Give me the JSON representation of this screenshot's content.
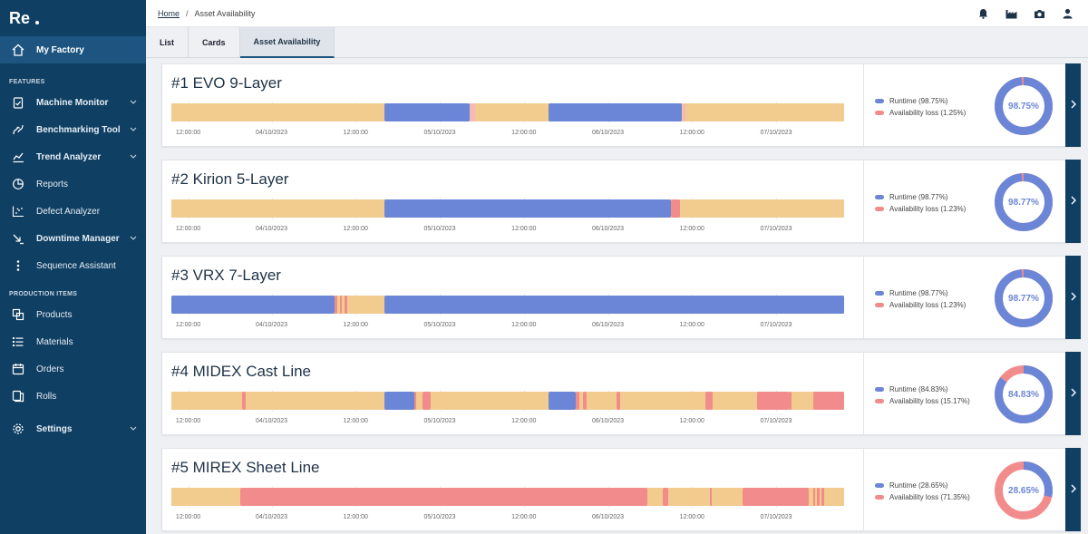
{
  "sidebar": {
    "my_factory": "My Factory",
    "features_title": "FEATURES",
    "features": [
      {
        "label": "Machine Monitor",
        "icon": "clipboard-check-icon",
        "bold": true,
        "chevron": true
      },
      {
        "label": "Benchmarking Tool",
        "icon": "benchmark-icon",
        "bold": true,
        "chevron": true
      },
      {
        "label": "Trend Analyzer",
        "icon": "trend-chart-icon",
        "bold": true,
        "chevron": true
      },
      {
        "label": "Reports",
        "icon": "pie-report-icon",
        "bold": false,
        "chevron": false
      },
      {
        "label": "Defect Analyzer",
        "icon": "scatter-chart-icon",
        "bold": false,
        "chevron": false
      },
      {
        "label": "Downtime Manager",
        "icon": "downtime-icon",
        "bold": true,
        "chevron": true
      },
      {
        "label": "Sequence Assistant",
        "icon": "sequence-icon",
        "bold": false,
        "chevron": false
      }
    ],
    "production_title": "PRODUCTION ITEMS",
    "production": [
      {
        "label": "Products",
        "icon": "products-icon"
      },
      {
        "label": "Materials",
        "icon": "list-icon"
      },
      {
        "label": "Orders",
        "icon": "calendar-icon"
      },
      {
        "label": "Rolls",
        "icon": "rolls-icon"
      }
    ],
    "settings": "Settings"
  },
  "breadcrumb": {
    "home": "Home",
    "sep": "/",
    "current": "Asset Availability"
  },
  "tabs": [
    {
      "label": "List",
      "active": false
    },
    {
      "label": "Cards",
      "active": false
    },
    {
      "label": "Asset Availability",
      "active": true
    }
  ],
  "axis_labels": [
    "12:00:00",
    "04/10/2023",
    "12:00:00",
    "05/10/2023",
    "12:00:00",
    "06/10/2023",
    "12:00:00",
    "07/10/2023"
  ],
  "colors": {
    "runtime": "#6b86d6",
    "loss": "#f28c8c",
    "idle": "#f2cb8e",
    "navy": "#0f3f63"
  },
  "assets": [
    {
      "title": "#1 EVO 9-Layer",
      "runtime_label": "Runtime (98.75%)",
      "loss_label": "Availability loss (1.25%)",
      "percent_label": "98.75%",
      "runtime_fraction": 0.9875,
      "segments": [
        {
          "t": "run",
          "s": 0.317,
          "e": 0.443
        },
        {
          "t": "tiny",
          "s": 0.443,
          "e": 0.451
        },
        {
          "t": "run",
          "s": 0.561,
          "e": 0.759
        },
        {
          "t": "tiny",
          "s": 0.76,
          "e": 0.764
        }
      ]
    },
    {
      "title": "#2 Kirion 5-Layer",
      "runtime_label": "Runtime (98.77%)",
      "loss_label": "Availability loss (1.23%)",
      "percent_label": "98.77%",
      "runtime_fraction": 0.9877,
      "segments": [
        {
          "t": "run",
          "s": 0.317,
          "e": 0.743
        },
        {
          "t": "loss",
          "s": 0.743,
          "e": 0.756
        }
      ]
    },
    {
      "title": "#3 VRX 7-Layer",
      "runtime_label": "Runtime (98.77%)",
      "loss_label": "Availability loss (1.23%)",
      "percent_label": "98.77%",
      "runtime_fraction": 0.9877,
      "segments": [
        {
          "t": "run",
          "s": 0.0,
          "e": 0.243
        },
        {
          "t": "loss",
          "s": 0.243,
          "e": 0.247
        },
        {
          "t": "loss",
          "s": 0.25,
          "e": 0.254
        },
        {
          "t": "loss",
          "s": 0.258,
          "e": 0.262
        },
        {
          "t": "run",
          "s": 0.317,
          "e": 1.0
        }
      ]
    },
    {
      "title": "#4 MIDEX Cast Line",
      "runtime_label": "Runtime (84.83%)",
      "loss_label": "Availability loss (15.17%)",
      "percent_label": "84.83%",
      "runtime_fraction": 0.8483,
      "segments": [
        {
          "t": "loss",
          "s": 0.105,
          "e": 0.111
        },
        {
          "t": "run",
          "s": 0.317,
          "e": 0.361
        },
        {
          "t": "loss",
          "s": 0.361,
          "e": 0.364
        },
        {
          "t": "loss",
          "s": 0.373,
          "e": 0.386
        },
        {
          "t": "run",
          "s": 0.561,
          "e": 0.601
        },
        {
          "t": "loss",
          "s": 0.601,
          "e": 0.606
        },
        {
          "t": "loss",
          "s": 0.612,
          "e": 0.617
        },
        {
          "t": "loss",
          "s": 0.662,
          "e": 0.667
        },
        {
          "t": "loss",
          "s": 0.794,
          "e": 0.804
        },
        {
          "t": "loss",
          "s": 0.871,
          "e": 0.918
        },
        {
          "t": "loss",
          "s": 0.918,
          "e": 0.922
        },
        {
          "t": "loss",
          "s": 0.954,
          "e": 1.0
        }
      ]
    },
    {
      "title": "#5 MIREX Sheet Line",
      "runtime_label": "Runtime (28.65%)",
      "loss_label": "Availability loss (71.35%)",
      "percent_label": "28.65%",
      "runtime_fraction": 0.2865,
      "segments": [
        {
          "t": "loss",
          "s": 0.103,
          "e": 0.707
        },
        {
          "t": "loss",
          "s": 0.731,
          "e": 0.739
        },
        {
          "t": "loss",
          "s": 0.8,
          "e": 0.803
        },
        {
          "t": "loss",
          "s": 0.849,
          "e": 0.948
        },
        {
          "t": "loss",
          "s": 0.954,
          "e": 0.957
        },
        {
          "t": "loss",
          "s": 0.96,
          "e": 0.963
        },
        {
          "t": "loss",
          "s": 0.966,
          "e": 0.97
        }
      ]
    }
  ]
}
